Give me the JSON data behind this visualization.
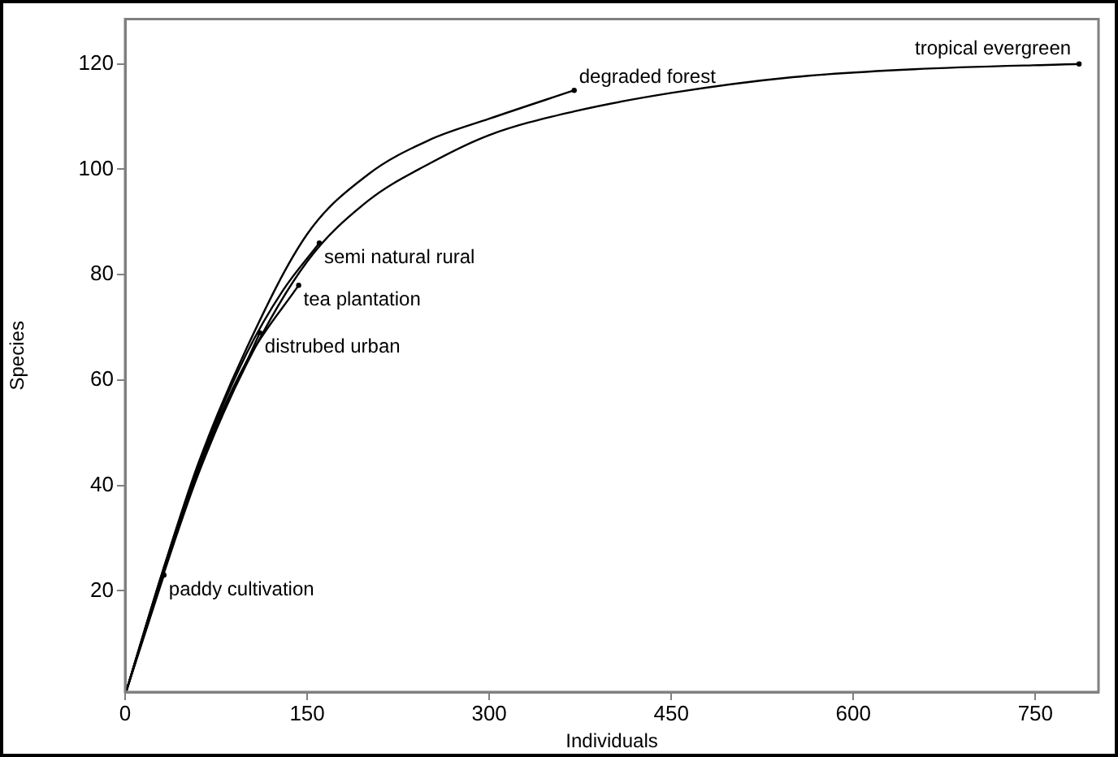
{
  "chart_data": {
    "type": "line",
    "xlabel": "Individuals",
    "ylabel": "Species",
    "xlim": [
      0,
      802
    ],
    "ylim": [
      0.8,
      128.5
    ],
    "xticks": [
      0,
      150,
      300,
      450,
      600,
      750
    ],
    "yticks": [
      20,
      40,
      60,
      80,
      100,
      120
    ],
    "grid": false,
    "legend": false,
    "series": [
      {
        "name": "tropical evergreen",
        "color": "#000000",
        "x": [
          1,
          30,
          60,
          100,
          150,
          200,
          250,
          300,
          370,
          450,
          550,
          650,
          786
        ],
        "values": [
          1,
          22,
          42,
          63,
          82.5,
          94,
          101,
          106.5,
          111,
          114.5,
          117.5,
          119,
          120
        ]
      },
      {
        "name": "degraded forest",
        "color": "#000000",
        "x": [
          1,
          30,
          60,
          100,
          150,
          200,
          250,
          300,
          370
        ],
        "values": [
          1,
          23,
          44,
          66,
          87.7,
          99,
          105.5,
          109.6,
          115
        ]
      },
      {
        "name": "semi natural rural",
        "color": "#000000",
        "x": [
          1,
          30,
          60,
          100,
          130,
          160
        ],
        "values": [
          1,
          23,
          43.5,
          65,
          77,
          86
        ]
      },
      {
        "name": "tea plantation",
        "color": "#000000",
        "x": [
          1,
          30,
          60,
          100,
          143
        ],
        "values": [
          1,
          22.5,
          43,
          63.5,
          78
        ]
      },
      {
        "name": "distrubed urban",
        "color": "#000000",
        "x": [
          1,
          30,
          60,
          111
        ],
        "values": [
          1,
          22.5,
          42.5,
          69
        ]
      },
      {
        "name": "paddy cultivation",
        "color": "#000000",
        "x": [
          1,
          32
        ],
        "values": [
          1,
          23
        ]
      }
    ]
  }
}
